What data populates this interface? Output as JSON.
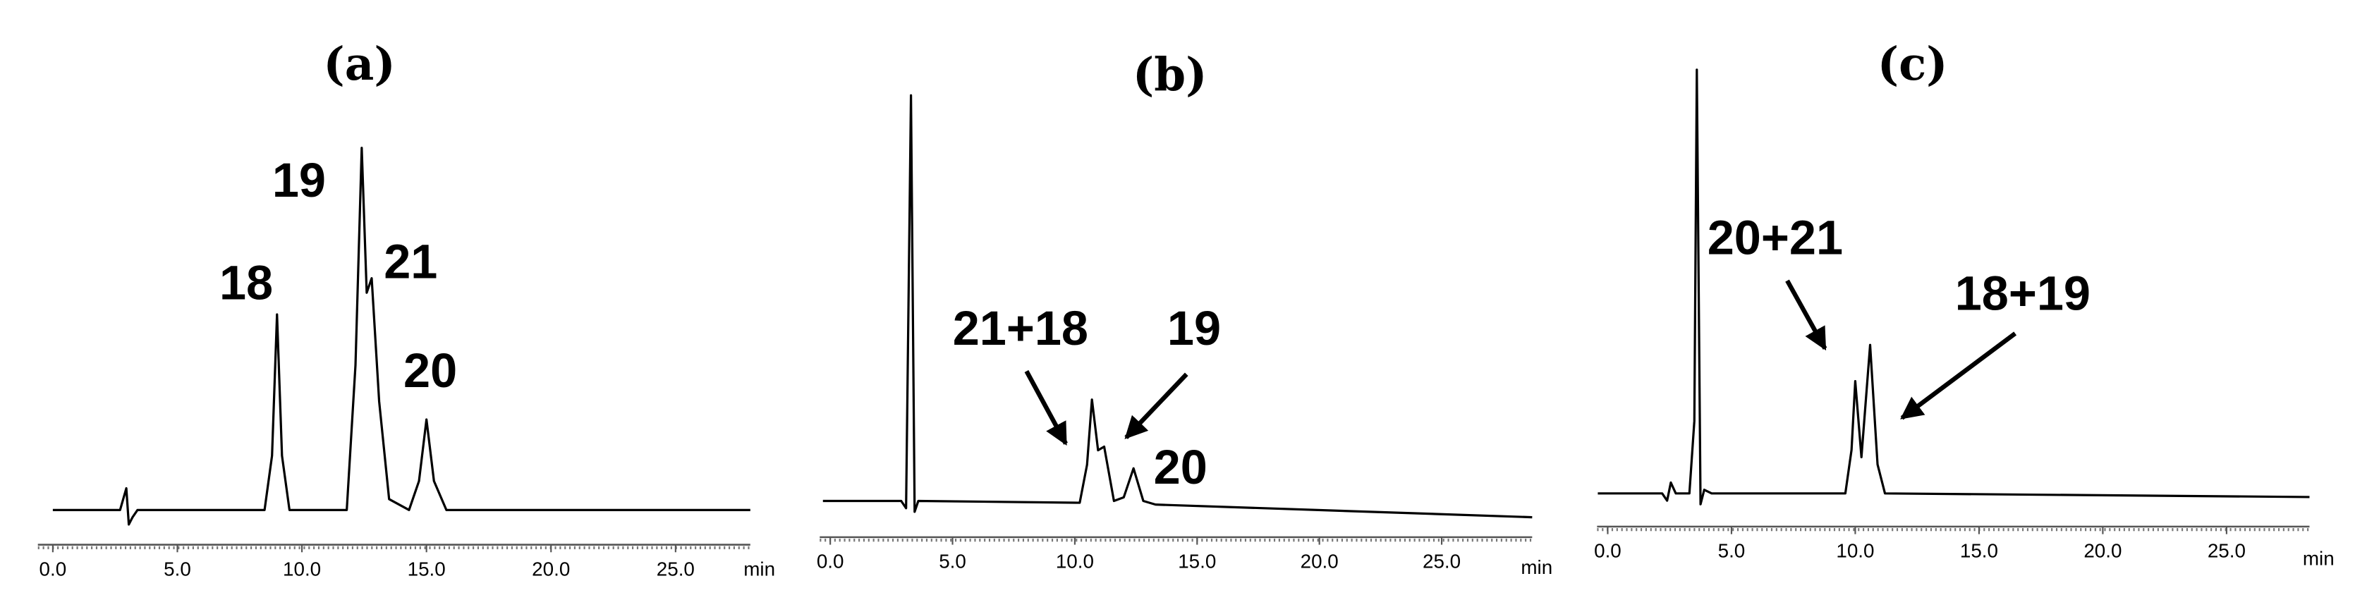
{
  "chart_data": [
    {
      "type": "line",
      "title": "(a)",
      "x": [
        0,
        2.7,
        2.95,
        3.05,
        3.2,
        3.4,
        6.0,
        8.5,
        8.8,
        9.0,
        9.2,
        9.5,
        11.8,
        12.15,
        12.4,
        12.6,
        12.8,
        13.1,
        13.5,
        14.3,
        14.7,
        15.0,
        15.3,
        15.8,
        28
      ],
      "series": [
        {
          "color": "#000000",
          "values": [
            0,
            0,
            6,
            -4,
            -2,
            0,
            0,
            0,
            15,
            54,
            15,
            0,
            0,
            40,
            100,
            60,
            64,
            30,
            3,
            0,
            8,
            25,
            8,
            0,
            0
          ]
        }
      ],
      "xlim": [
        -0.6,
        28
      ],
      "ylim": [
        -12,
        125
      ],
      "xlabel": "min",
      "xticks": [
        {
          "value": 0,
          "label": "0.0"
        },
        {
          "value": 5,
          "label": "5.0"
        },
        {
          "value": 10,
          "label": "10.0"
        },
        {
          "value": 15,
          "label": "15.0"
        },
        {
          "value": 20,
          "label": "20.0"
        },
        {
          "value": 25,
          "label": "25.0"
        }
      ],
      "annotations": [
        "18",
        "19",
        "21",
        "20"
      ]
    },
    {
      "type": "line",
      "title": "(b)",
      "x": [
        -0.3,
        2.9,
        3.1,
        3.3,
        3.45,
        3.6,
        10.2,
        10.5,
        10.7,
        10.95,
        11.2,
        11.6,
        12.0,
        12.4,
        12.8,
        13.3,
        28.7
      ],
      "series": [
        {
          "color": "#000000",
          "values": [
            0,
            0,
            -2,
            112,
            -3,
            0,
            -0.5,
            10,
            28,
            14,
            15,
            0,
            1,
            9,
            0,
            -1,
            -4.5
          ]
        }
      ],
      "xlim": [
        -0.43,
        28.7
      ],
      "ylim": [
        -12,
        125
      ],
      "xlabel": "min",
      "xticks": [
        {
          "value": 0,
          "label": "0.0"
        },
        {
          "value": 5,
          "label": "5.0"
        },
        {
          "value": 10,
          "label": "10.0"
        },
        {
          "value": 15,
          "label": "15.0"
        },
        {
          "value": 20,
          "label": "20.0"
        },
        {
          "value": 25,
          "label": "25.0"
        }
      ],
      "annotations": [
        "21+18",
        "19",
        "20"
      ]
    },
    {
      "type": "line",
      "title": "(c)",
      "x": [
        -0.4,
        2.2,
        2.4,
        2.55,
        2.75,
        3.3,
        3.5,
        3.6,
        3.75,
        3.9,
        4.2,
        9.6,
        9.85,
        10.0,
        10.25,
        10.6,
        10.9,
        11.2,
        28.35
      ],
      "series": [
        {
          "color": "#000000",
          "values": [
            0,
            0,
            -2,
            3,
            0,
            0,
            20,
            117,
            -3,
            1,
            0,
            0,
            12,
            31,
            10,
            41,
            8,
            0,
            -1
          ]
        }
      ],
      "xlim": [
        -0.43,
        28.35
      ],
      "ylim": [
        -12,
        125
      ],
      "xlabel": "min",
      "xticks": [
        {
          "value": 0,
          "label": "0.0"
        },
        {
          "value": 5,
          "label": "5.0"
        },
        {
          "value": 10,
          "label": "10.0"
        },
        {
          "value": 15,
          "label": "15.0"
        },
        {
          "value": 20,
          "label": "20.0"
        },
        {
          "value": 25,
          "label": "25.0"
        }
      ],
      "annotations": [
        "20+21",
        "18+19"
      ]
    }
  ]
}
